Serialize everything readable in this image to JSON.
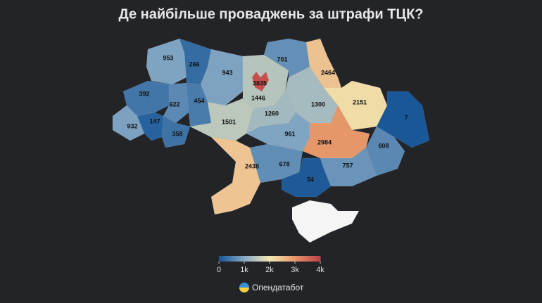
{
  "title": "Де найбільше проваджень за штрафи ТЦК?",
  "chart_data": {
    "type": "choropleth",
    "values": [
      953,
      266,
      943,
      1446,
      3835,
      701,
      2464,
      392,
      622,
      454,
      1300,
      2151,
      7,
      608,
      2984,
      932,
      147,
      358,
      1501,
      1260,
      961,
      2438,
      678,
      757,
      54
    ],
    "colorbar": {
      "range": [
        0,
        4000
      ],
      "ticks": [
        0,
        {
          "value": 1000,
          "label": "1k"
        },
        {
          "value": 2000,
          "label": "2k"
        },
        {
          "value": 3000,
          "label": "3k"
        },
        {
          "value": 4000,
          "label": "4k"
        }
      ]
    }
  },
  "brand": "Опендатабот"
}
